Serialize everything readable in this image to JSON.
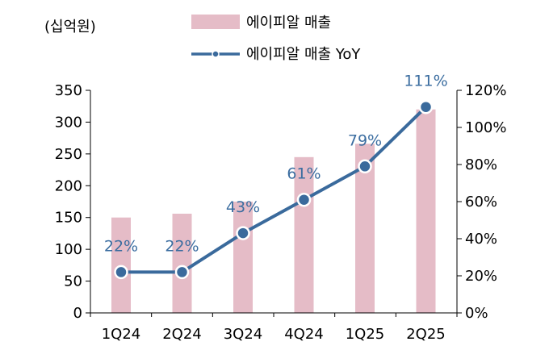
{
  "unit_label": "(십억원)",
  "legend": {
    "bar_label": "에이피알 매출",
    "line_label": "에이피알 매출 YoY"
  },
  "colors": {
    "bar": "#e5bcc7",
    "line": "#3a6a9c",
    "marker_fill": "#3a6a9c",
    "marker_stroke": "#ffffff",
    "data_label": "#3b6da0"
  },
  "chart_data": {
    "type": "bar",
    "categories": [
      "1Q24",
      "2Q24",
      "3Q24",
      "4Q24",
      "1Q25",
      "2Q25"
    ],
    "series": [
      {
        "name": "에이피알 매출",
        "type": "bar",
        "axis": "left",
        "values": [
          150,
          156,
          175,
          245,
          266,
          320
        ]
      },
      {
        "name": "에이피알 매출 YoY",
        "type": "line",
        "axis": "right",
        "values": [
          22,
          22,
          43,
          61,
          79,
          111
        ],
        "labels": [
          "22%",
          "22%",
          "43%",
          "61%",
          "79%",
          "111%"
        ]
      }
    ],
    "y_left": {
      "min": 0,
      "max": 350,
      "ticks": [
        "0",
        "50",
        "100",
        "150",
        "200",
        "250",
        "300",
        "350"
      ]
    },
    "y_right": {
      "min": 0,
      "max": 120,
      "ticks": [
        "0%",
        "20%",
        "40%",
        "60%",
        "80%",
        "100%",
        "120%"
      ]
    },
    "grid": false,
    "legend_position": "top-center"
  }
}
